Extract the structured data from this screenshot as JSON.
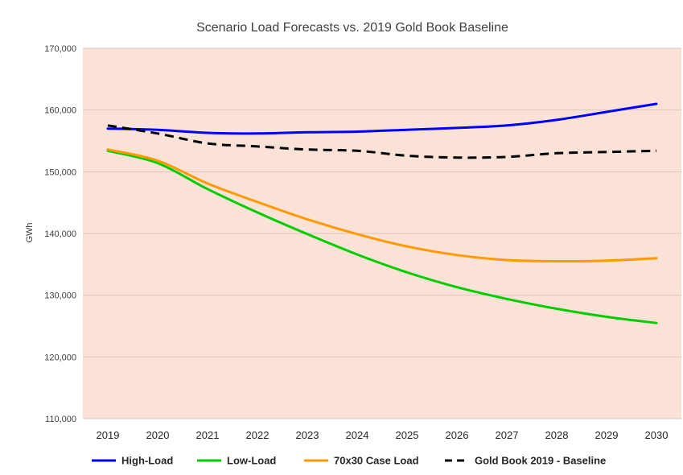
{
  "chart_data": {
    "type": "line",
    "title": "Scenario Load Forecasts vs. 2019 Gold Book Baseline",
    "xlabel": "",
    "ylabel": "GWh",
    "x": [
      "2019",
      "2020",
      "2021",
      "2022",
      "2023",
      "2024",
      "2025",
      "2026",
      "2027",
      "2028",
      "2029",
      "2030"
    ],
    "ylim": [
      110000,
      170000
    ],
    "yticks": [
      110000,
      120000,
      130000,
      140000,
      150000,
      160000,
      170000
    ],
    "ytick_labels": [
      "110,000",
      "120,000",
      "130,000",
      "140,000",
      "150,000",
      "160,000",
      "170,000"
    ],
    "grid": true,
    "plot_background": "#fbe2d6",
    "legend_position": "bottom",
    "series": [
      {
        "name": "High-Load",
        "color": "#0000ff",
        "dash": "solid",
        "values": [
          157000,
          156800,
          156300,
          156200,
          156400,
          156500,
          156800,
          157100,
          157500,
          158400,
          159700,
          161000
        ]
      },
      {
        "name": "Low-Load",
        "color": "#00cc00",
        "dash": "solid",
        "values": [
          153400,
          151400,
          147200,
          143400,
          139900,
          136600,
          133700,
          131300,
          129400,
          127800,
          126500,
          125500
        ]
      },
      {
        "name": "70x30 Case Load",
        "color": "#ff9900",
        "dash": "solid",
        "values": [
          153600,
          151800,
          148100,
          145100,
          142300,
          139900,
          137900,
          136500,
          135700,
          135500,
          135600,
          136000
        ]
      },
      {
        "name": "Gold Book 2019 - Baseline",
        "color": "#000000",
        "dash": "dashed",
        "values": [
          157500,
          156200,
          154600,
          154100,
          153600,
          153400,
          152600,
          152300,
          152400,
          153000,
          153200,
          153400
        ]
      }
    ]
  }
}
